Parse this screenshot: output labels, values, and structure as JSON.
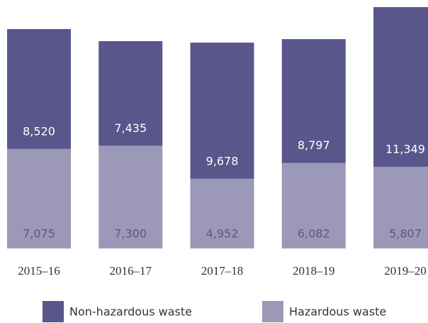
{
  "chart_data": {
    "type": "stacked_bar",
    "categories": [
      "2015–16",
      "2016–17",
      "2017–18",
      "2018–19",
      "2019–20"
    ],
    "series": [
      {
        "name": "Non-hazardous waste",
        "color": "#58568a",
        "values": [
          8520,
          7435,
          9678,
          8797,
          11349
        ],
        "value_labels": [
          "8,520",
          "7,435",
          "9,678",
          "8,797",
          "11,349"
        ]
      },
      {
        "name": "Hazardous waste",
        "color": "#9b98b8",
        "values": [
          7075,
          7300,
          4952,
          6082,
          5807
        ],
        "value_labels": [
          "7,075",
          "7,300",
          "4,952",
          "6,082",
          "5,807"
        ]
      }
    ],
    "legend": "bottom"
  }
}
